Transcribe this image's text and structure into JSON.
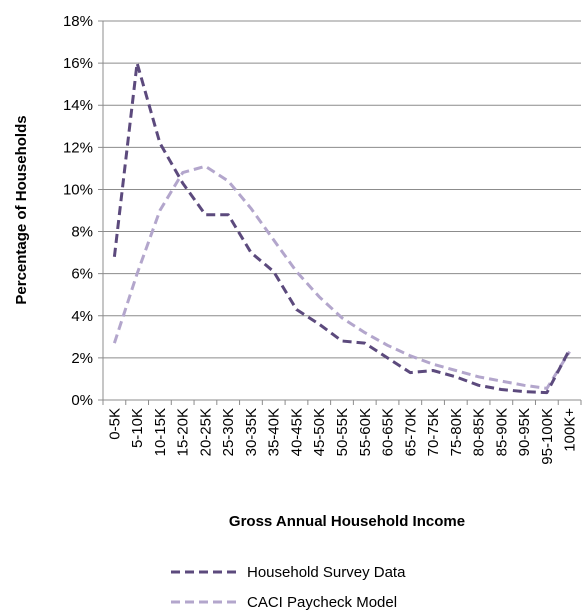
{
  "chart_data": {
    "type": "line",
    "xlabel": "Gross Annual Household Income",
    "ylabel": "Percentage of Households",
    "ylim": [
      0,
      18
    ],
    "yticks": [
      "0%",
      "2%",
      "4%",
      "6%",
      "8%",
      "10%",
      "12%",
      "14%",
      "16%",
      "18%"
    ],
    "grid": true,
    "legend_position": "bottom",
    "categories": [
      "0-5K",
      "5-10K",
      "10-15K",
      "15-20K",
      "20-25K",
      "25-30K",
      "30-35K",
      "35-40K",
      "40-45K",
      "45-50K",
      "50-55K",
      "55-60K",
      "60-65K",
      "65-70K",
      "70-75K",
      "75-80K",
      "80-85K",
      "85-90K",
      "90-95K",
      "95-100K",
      "100K+"
    ],
    "series": [
      {
        "name": "Household Survey Data",
        "color": "#5c4a7d",
        "values": [
          6.8,
          16.0,
          12.2,
          10.3,
          8.8,
          8.8,
          7.0,
          6.1,
          4.3,
          3.6,
          2.8,
          2.7,
          2.0,
          1.3,
          1.4,
          1.1,
          0.7,
          0.5,
          0.4,
          0.35,
          2.4
        ]
      },
      {
        "name": "CACI Paycheck Model",
        "color": "#b3a6cc",
        "values": [
          2.7,
          6.0,
          9.0,
          10.8,
          11.1,
          10.4,
          9.1,
          7.6,
          6.1,
          4.9,
          3.9,
          3.2,
          2.6,
          2.1,
          1.7,
          1.4,
          1.1,
          0.9,
          0.7,
          0.55,
          2.3
        ]
      }
    ]
  }
}
